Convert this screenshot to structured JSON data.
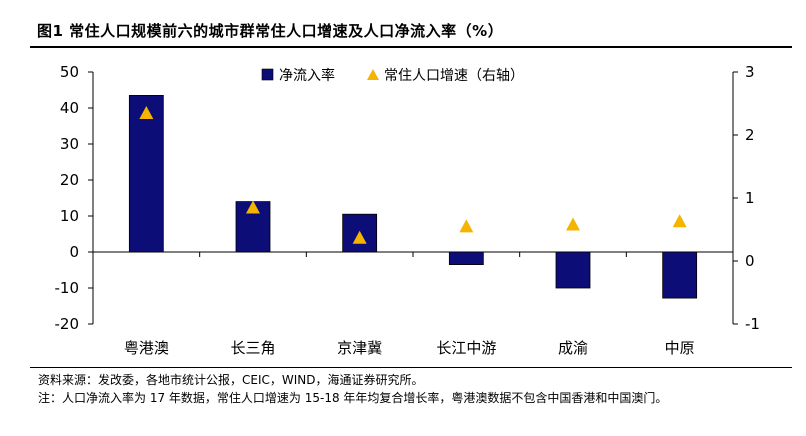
{
  "figure": {
    "title": "图1  常住人口规模前六的城市群常住人口增速及人口净流入率（%）",
    "source": "资料来源：发改委，各地市统计公报，CEIC，WIND，海通证券研究所。",
    "note": "注：人口净流入率为 17 年数据，常住人口增速为 15-18 年年均复合增长率，粤港澳数据不包含中国香港和中国澳门。"
  },
  "colors": {
    "bar": "#0d0d78",
    "marker": "#f4b400",
    "axis": "#000000"
  },
  "chart_data": {
    "type": "bar",
    "categories": [
      "粤港澳",
      "长三角",
      "京津冀",
      "长江中游",
      "成渝",
      "中原"
    ],
    "series": [
      {
        "name": "净流入率",
        "axis": "left",
        "type": "bar",
        "values": [
          43.5,
          14.0,
          10.5,
          -3.5,
          -10.0,
          -12.8
        ]
      },
      {
        "name": "常住人口增速（右轴）",
        "axis": "right",
        "type": "scatter",
        "marker": "triangle",
        "values": [
          2.35,
          0.85,
          0.37,
          0.55,
          0.58,
          0.63
        ]
      }
    ],
    "ylim_left": [
      -20,
      50
    ],
    "yticks_left": [
      -20,
      -10,
      0,
      10,
      20,
      30,
      40,
      50
    ],
    "ylim_right": [
      -1,
      3
    ],
    "yticks_right": [
      -1,
      0,
      1,
      2,
      3
    ],
    "legend_position": "top-center",
    "grid": false
  }
}
